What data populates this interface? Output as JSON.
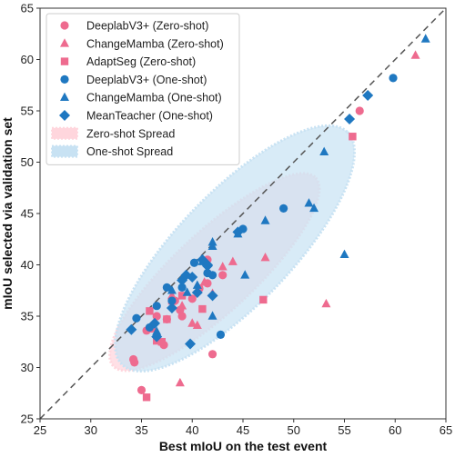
{
  "chart_data": {
    "type": "scatter",
    "xlabel": "Best mIoU on the test event",
    "ylabel": "mIoU selected via validation set",
    "xlim": [
      25,
      65
    ],
    "ylim": [
      25,
      65
    ],
    "xticks": [
      "25",
      "30",
      "35",
      "40",
      "45",
      "50",
      "55",
      "60",
      "65"
    ],
    "yticks": [
      "25",
      "30",
      "35",
      "40",
      "45",
      "50",
      "55",
      "60",
      "65"
    ],
    "grid": false,
    "legend_position": "top-left",
    "reference_line": "y = x (dashed)",
    "colors": {
      "zero_shot": "#ee6b8f",
      "one_shot": "#1f78c1",
      "zero_spread": "#ffd6dd",
      "one_shot_spread": "#c8e2f3"
    },
    "series": [
      {
        "name": "DeeplabV3+ (Zero-shot)",
        "marker": "circle",
        "color": "#ee6b8f",
        "points": [
          [
            34.2,
            30.8
          ],
          [
            34.3,
            30.5
          ],
          [
            35.0,
            27.8
          ],
          [
            35.5,
            33.6
          ],
          [
            36.0,
            33.8
          ],
          [
            36.5,
            35.0
          ],
          [
            37.2,
            32.2
          ],
          [
            37.5,
            34.7
          ],
          [
            38.3,
            36.5
          ],
          [
            38.8,
            35.6
          ],
          [
            39.0,
            35.0
          ],
          [
            40.0,
            36.7
          ],
          [
            40.7,
            37.7
          ],
          [
            41.5,
            38.2
          ],
          [
            41.5,
            40.5
          ],
          [
            42.0,
            31.3
          ],
          [
            43.0,
            39.0
          ],
          [
            56.5,
            55.0
          ]
        ]
      },
      {
        "name": "ChangeMamba (Zero-shot)",
        "marker": "triangle",
        "color": "#ee6b8f",
        "points": [
          [
            38.8,
            28.5
          ],
          [
            38.0,
            37.0
          ],
          [
            39.0,
            36.0
          ],
          [
            40.0,
            34.3
          ],
          [
            40.5,
            34.1
          ],
          [
            41.2,
            38.3
          ],
          [
            42.0,
            37.2
          ],
          [
            43.0,
            39.8
          ],
          [
            44.0,
            40.3
          ],
          [
            47.2,
            40.7
          ],
          [
            53.2,
            36.2
          ],
          [
            62.0,
            60.4
          ]
        ]
      },
      {
        "name": "AdaptSeg (Zero-shot)",
        "marker": "square",
        "color": "#ee6b8f",
        "points": [
          [
            35.5,
            27.1
          ],
          [
            35.8,
            35.5
          ],
          [
            36.5,
            32.6
          ],
          [
            37.0,
            32.5
          ],
          [
            37.5,
            34.7
          ],
          [
            38.0,
            36.5
          ],
          [
            39.0,
            37.0
          ],
          [
            41.0,
            35.7
          ],
          [
            47.0,
            36.6
          ],
          [
            55.8,
            52.5
          ]
        ]
      },
      {
        "name": "DeeplabV3+ (One-shot)",
        "marker": "circle",
        "color": "#1f78c1",
        "points": [
          [
            34.5,
            34.8
          ],
          [
            35.8,
            33.9
          ],
          [
            36.5,
            36.0
          ],
          [
            37.5,
            37.8
          ],
          [
            38.0,
            36.5
          ],
          [
            39.0,
            37.8
          ],
          [
            40.2,
            40.2
          ],
          [
            41.5,
            39.2
          ],
          [
            42.0,
            39.0
          ],
          [
            42.8,
            33.2
          ],
          [
            45.0,
            43.5
          ],
          [
            49.0,
            45.5
          ],
          [
            59.8,
            58.2
          ]
        ]
      },
      {
        "name": "ChangeMamba (One-shot)",
        "marker": "triangle",
        "color": "#1f78c1",
        "points": [
          [
            36.5,
            33.5
          ],
          [
            38.0,
            37.5
          ],
          [
            39.5,
            37.3
          ],
          [
            40.5,
            38.0
          ],
          [
            41.0,
            40.3
          ],
          [
            42.0,
            41.8
          ],
          [
            42.0,
            42.2
          ],
          [
            42.0,
            35.0
          ],
          [
            44.5,
            43.0
          ],
          [
            45.2,
            39.0
          ],
          [
            47.2,
            44.3
          ],
          [
            51.5,
            46.0
          ],
          [
            52.0,
            45.5
          ],
          [
            53.0,
            51.0
          ],
          [
            55.0,
            41.0
          ],
          [
            63.0,
            62.0
          ]
        ]
      },
      {
        "name": "MeanTeacher (One-shot)",
        "marker": "diamond",
        "color": "#1f78c1",
        "points": [
          [
            34.0,
            33.7
          ],
          [
            36.3,
            34.3
          ],
          [
            36.5,
            33.0
          ],
          [
            38.0,
            35.8
          ],
          [
            39.0,
            38.5
          ],
          [
            39.4,
            39.0
          ],
          [
            39.8,
            32.3
          ],
          [
            40.0,
            38.8
          ],
          [
            40.5,
            37.3
          ],
          [
            41.0,
            40.5
          ],
          [
            41.5,
            40.0
          ],
          [
            41.5,
            39.9
          ],
          [
            42.0,
            37.0
          ],
          [
            44.5,
            43.2
          ],
          [
            55.5,
            54.2
          ],
          [
            57.3,
            56.5
          ]
        ]
      }
    ],
    "spreads": [
      {
        "name": "Zero-shot Spread",
        "color": "#ffd6dd"
      },
      {
        "name": "One-shot Spread",
        "color": "#c8e2f3"
      }
    ]
  }
}
